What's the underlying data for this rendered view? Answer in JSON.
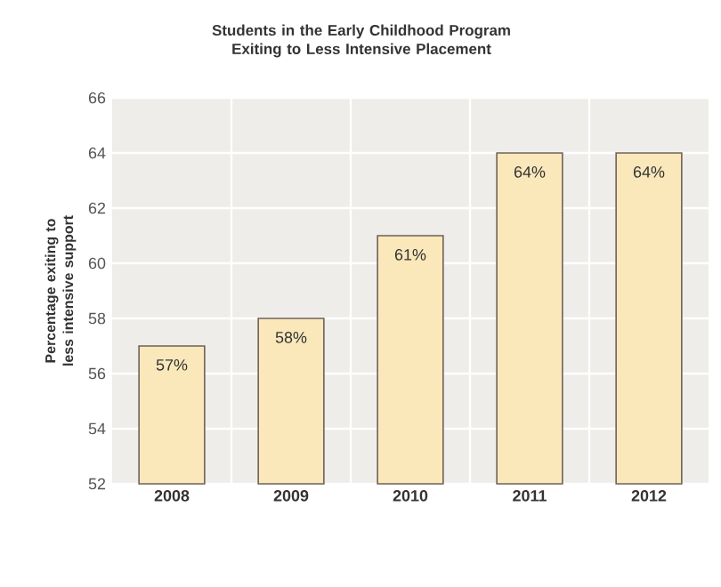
{
  "chart_data": {
    "type": "bar",
    "title": "Students in the Early Childhood Program Exiting to Less Intensive Placement",
    "ylabel": "Percentage exiting to less intensive support",
    "categories": [
      "2008",
      "2009",
      "2010",
      "2011",
      "2012"
    ],
    "values": [
      57,
      58,
      61,
      64,
      64
    ],
    "value_labels": [
      "57%",
      "58%",
      "61%",
      "64%",
      "64%"
    ],
    "color": "#fae8bb",
    "ylim": [
      52,
      66
    ],
    "yticks": [
      52,
      54,
      56,
      58,
      60,
      62,
      64,
      66
    ],
    "grid": true
  }
}
